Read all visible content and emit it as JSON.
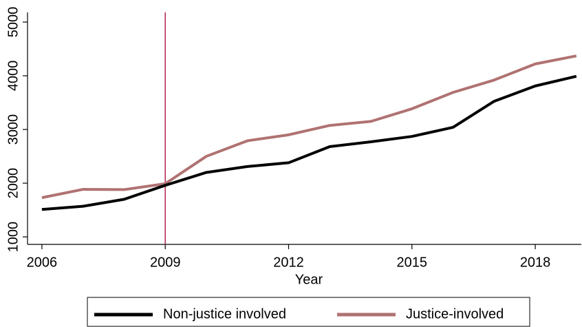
{
  "chart_data": {
    "type": "line",
    "x_label": "Year",
    "x": [
      2006,
      2007,
      2008,
      2009,
      2010,
      2011,
      2012,
      2013,
      2014,
      2015,
      2016,
      2017,
      2018,
      2019
    ],
    "series": [
      {
        "name": "Non-justice involved",
        "color": "#000000",
        "values": [
          1510,
          1570,
          1700,
          1960,
          2200,
          2310,
          2380,
          2680,
          2770,
          2870,
          3040,
          3525,
          3810,
          3990
        ]
      },
      {
        "name": "Justice-involved",
        "color": "#b07272",
        "values": [
          1730,
          1885,
          1880,
          1990,
          2500,
          2790,
          2900,
          3075,
          3150,
          3385,
          3690,
          3920,
          4220,
          4370
        ]
      }
    ],
    "vline": 2009,
    "vline_color": "#b3234f",
    "xlim": [
      2005.65,
      2019.12
    ],
    "xticks": [
      2006,
      2009,
      2012,
      2015,
      2018
    ],
    "ylim": [
      860,
      5180
    ],
    "yticks": [
      1000,
      2000,
      3000,
      4000,
      5000
    ],
    "legend": "bottom"
  }
}
